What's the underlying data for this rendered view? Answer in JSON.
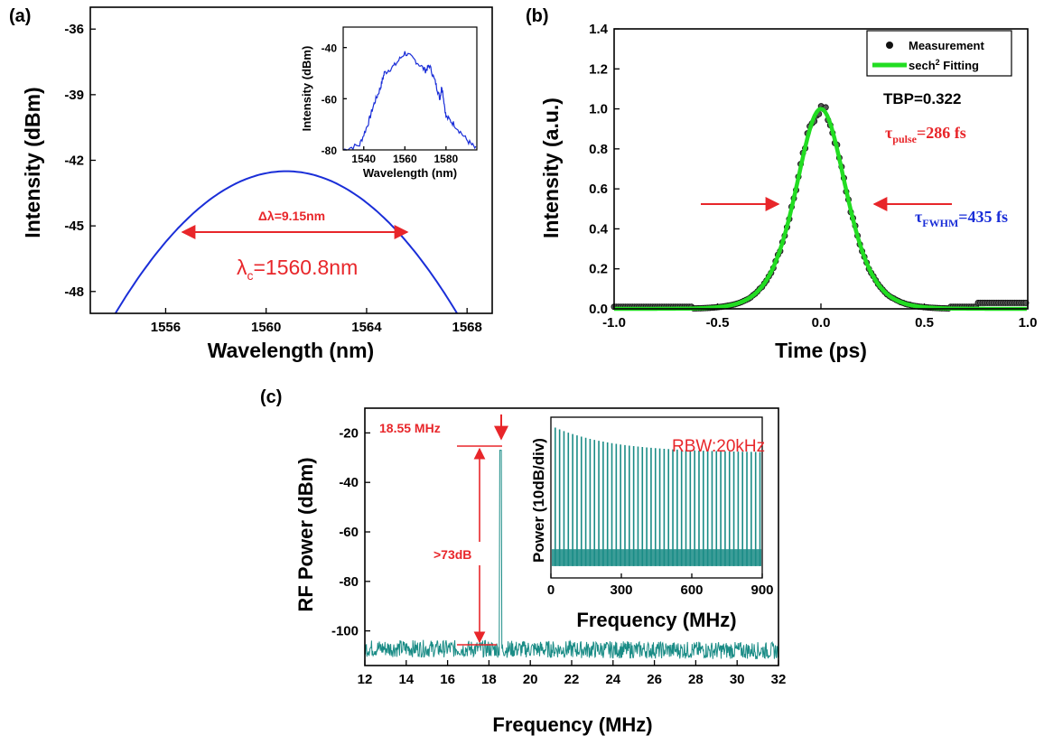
{
  "chart_data": [
    {
      "panel": "(a)",
      "type": "line",
      "xlabel": "Wavelength (nm)",
      "ylabel": "Intensity (dBm)",
      "xlim": [
        1553,
        1569
      ],
      "ylim": [
        -49,
        -35
      ],
      "xticks": [
        1556,
        1560,
        1564,
        1568
      ],
      "yticks": [
        -36,
        -39,
        -42,
        -45,
        -48
      ],
      "series": [
        {
          "color": "#1a2ed8",
          "x": [
            1554,
            1556,
            1558,
            1560,
            1560.8,
            1562,
            1564,
            1566,
            1567.6
          ],
          "y": [
            -49.0,
            -46.0,
            -43.8,
            -42.6,
            -42.5,
            -42.6,
            -43.8,
            -46.0,
            -49.0
          ]
        }
      ],
      "annotations": {
        "bandwidth": "Δλ=9.15nm",
        "center_prefix": "λ",
        "center_sub": "c",
        "center_suffix": "=1560.8nm"
      },
      "inset": {
        "type": "line",
        "xlabel": "Wavelength (nm)",
        "ylabel": "Intensity (dBm)",
        "xlim": [
          1530,
          1595
        ],
        "ylim": [
          -80,
          -32
        ],
        "xticks": [
          1540,
          1560,
          1580
        ],
        "yticks": [
          -40,
          -60,
          -80
        ],
        "series": [
          {
            "color": "#1a2ed8",
            "x": [
              1530,
              1538,
              1542,
              1545,
              1548,
              1550,
              1555,
              1560,
              1565,
              1570,
              1572,
              1575,
              1577,
              1578,
              1580,
              1584,
              1590,
              1595
            ],
            "y": [
              -80,
              -78,
              -70,
              -62,
              -56,
              -50,
              -47,
              -42,
              -45,
              -49,
              -47,
              -54,
              -60,
              -55,
              -67,
              -70,
              -76,
              -80
            ]
          }
        ]
      }
    },
    {
      "panel": "(b)",
      "type": "scatter",
      "xlabel": "Time (ps)",
      "ylabel": "Intensity (a.u.)",
      "xlim": [
        -1.0,
        1.0
      ],
      "ylim": [
        0.0,
        1.4
      ],
      "xticks": [
        -1.0,
        -0.5,
        0.0,
        0.5,
        1.0
      ],
      "yticks": [
        0.0,
        0.2,
        0.4,
        0.6,
        0.8,
        1.0,
        1.2,
        1.4
      ],
      "legend": {
        "position": "top-right",
        "entries": [
          "Measurement",
          "sech",
          "2",
          " Fitting"
        ]
      },
      "series": [
        {
          "name": "Measurement",
          "color": "#111111",
          "x": [
            -0.9,
            -0.6,
            -0.5,
            -0.4,
            -0.3,
            -0.2,
            -0.1,
            0.0,
            0.1,
            0.2,
            0.3,
            0.4,
            0.5,
            0.6,
            0.8,
            0.9
          ],
          "y": [
            0.01,
            0.0,
            0.02,
            0.1,
            0.3,
            0.6,
            0.85,
            0.99,
            0.86,
            0.62,
            0.33,
            0.08,
            0.0,
            0.0,
            0.03,
            0.03
          ]
        },
        {
          "name": "sech2 Fitting",
          "color": "#22dd22",
          "x": [
            -1.0,
            -0.6,
            -0.4,
            -0.3,
            -0.2,
            -0.1,
            0.0,
            0.1,
            0.2,
            0.3,
            0.4,
            0.6,
            1.0
          ],
          "y": [
            0.0,
            0.01,
            0.1,
            0.27,
            0.55,
            0.87,
            1.0,
            0.87,
            0.55,
            0.27,
            0.1,
            0.01,
            0.0
          ]
        }
      ],
      "annotations": {
        "tbp": "TBP=0.322",
        "tau": "τ",
        "pulse_sub": "pulse",
        "pulse_suffix": "=286 fs",
        "fwhm_sub": "FWHM",
        "fwhm_suffix": "=435 fs"
      }
    },
    {
      "panel": "(c)",
      "type": "line",
      "xlabel": "Frequency (MHz)",
      "ylabel": "RF Power (dBm)",
      "xlim": [
        12,
        32
      ],
      "ylim": [
        -114,
        -10
      ],
      "xticks": [
        12,
        14,
        16,
        18,
        20,
        22,
        24,
        26,
        28,
        30,
        32
      ],
      "yticks": [
        -20,
        -40,
        -60,
        -80,
        -100
      ],
      "series": [
        {
          "color": "#1a8c86",
          "x": [
            12,
            18.4,
            18.55,
            18.7,
            32
          ],
          "y": [
            -107,
            -107,
            -27,
            -107,
            -108
          ]
        }
      ],
      "annotations": {
        "rep_rate": "18.55 MHz",
        "snr": ">73dB"
      },
      "inset": {
        "type": "line",
        "xlabel": "Frequency (MHz)",
        "ylabel": "Power (10dB/div)",
        "xlim": [
          0,
          900
        ],
        "xticks": [
          0,
          300,
          600,
          900
        ],
        "annotation": "RBW:20kHz",
        "series": [
          {
            "color": "#1a8c86",
            "x": [
              0,
              100,
              300,
              600,
              900
            ],
            "y": [
              -20,
              -28,
              -32,
              -35,
              -36
            ]
          }
        ]
      }
    }
  ]
}
